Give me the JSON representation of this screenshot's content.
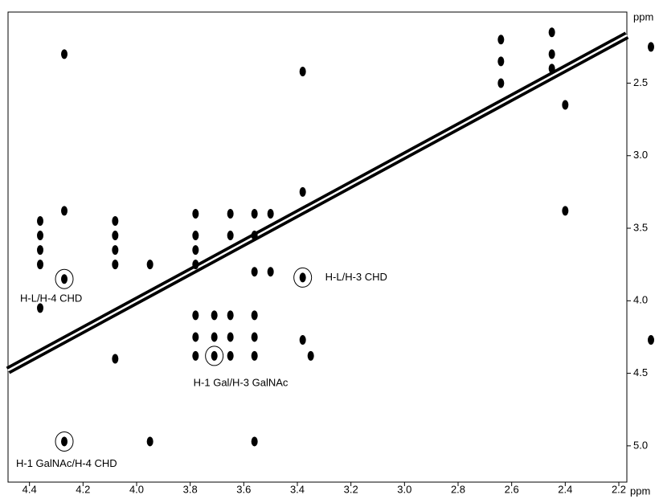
{
  "chart_data": {
    "type": "nmr2d",
    "x_label": "ppm",
    "y_label": "ppm",
    "xlim": [
      4.48,
      2.17
    ],
    "ylim": [
      2.01,
      5.25
    ],
    "xticks": [
      4.4,
      4.2,
      {
        "value": 4,
        "label": "4.0"
      },
      3.8,
      3.6,
      3.4,
      3.2,
      {
        "value": 3,
        "label": "3.0"
      },
      2.8,
      2.6,
      2.4,
      2.2
    ],
    "yticks": [
      2.5,
      {
        "value": 3,
        "label": "3.0"
      },
      3.5,
      {
        "value": 4,
        "label": "4.0"
      },
      4.5,
      {
        "value": 5,
        "label": "5.0"
      }
    ],
    "color": "#000000",
    "peaks": {
      "x": [
        4.27,
        4.27,
        4.36,
        4.36,
        4.36,
        4.36,
        4.36,
        4.08,
        4.08,
        4.08,
        4.08,
        4.08,
        3.95,
        3.95,
        3.78,
        3.78,
        3.78,
        3.78,
        3.78,
        3.78,
        3.78,
        3.71,
        3.71,
        3.65,
        3.65,
        3.65,
        3.65,
        3.65,
        3.56,
        3.56,
        3.56,
        3.56,
        3.56,
        3.56,
        3.56,
        3.5,
        3.5,
        3.38,
        3.38,
        3.38,
        3.35,
        2.64,
        2.64,
        2.64,
        2.45,
        2.45,
        2.45,
        2.4,
        2.4,
        2.08,
        2.08
      ],
      "y": [
        2.3,
        3.38,
        3.45,
        3.55,
        3.65,
        3.75,
        4.05,
        3.45,
        3.55,
        3.65,
        3.75,
        4.4,
        3.75,
        4.97,
        3.4,
        3.55,
        3.65,
        3.75,
        4.1,
        4.25,
        4.38,
        4.1,
        4.25,
        3.4,
        3.55,
        4.1,
        4.25,
        4.38,
        3.4,
        3.55,
        3.8,
        4.1,
        4.25,
        4.38,
        4.97,
        3.4,
        3.8,
        2.42,
        3.25,
        4.27,
        4.38,
        2.2,
        2.35,
        2.5,
        2.15,
        2.3,
        2.4,
        2.65,
        3.38,
        2.25,
        4.27
      ]
    },
    "annotations": [
      {
        "text": "H-L/H-4 CHD",
        "x": 4.27,
        "y": 3.85
      },
      {
        "text": "H-L/H-3 CHD",
        "x": 3.38,
        "y": 3.84
      },
      {
        "text": "H-1 Gal/H-3 GalNAc",
        "x": 3.71,
        "y": 4.38
      },
      {
        "text": "H-1 GalNAc/H-4 CHD",
        "x": 4.27,
        "y": 4.97
      }
    ]
  }
}
